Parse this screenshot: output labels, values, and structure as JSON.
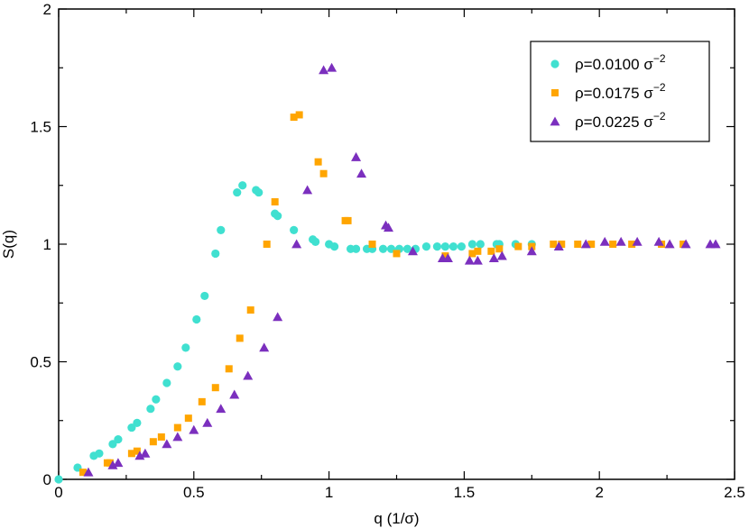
{
  "chart_data": {
    "type": "scatter",
    "title": "",
    "xlabel": "q  (1/σ)",
    "ylabel": "S(q)",
    "xlim": [
      0,
      2.5
    ],
    "ylim": [
      0,
      2
    ],
    "xticks": [
      0,
      0.5,
      1,
      1.5,
      2,
      2.5
    ],
    "xtick_labels": [
      "0",
      "0.5",
      "1",
      "1.5",
      "2",
      "2.5"
    ],
    "yticks": [
      0,
      0.5,
      1,
      1.5,
      2
    ],
    "ytick_labels": [
      "0",
      "0.5",
      "1",
      "1.5",
      "2"
    ],
    "legend_position": "top-right",
    "series": [
      {
        "name": "ρ=0.0100 σ",
        "exponent": "−2",
        "marker": "circle",
        "color": "#40e0d0",
        "points": [
          [
            0.0,
            0.0
          ],
          [
            0.07,
            0.05
          ],
          [
            0.13,
            0.1
          ],
          [
            0.15,
            0.11
          ],
          [
            0.2,
            0.15
          ],
          [
            0.22,
            0.17
          ],
          [
            0.27,
            0.22
          ],
          [
            0.29,
            0.24
          ],
          [
            0.34,
            0.3
          ],
          [
            0.36,
            0.34
          ],
          [
            0.4,
            0.41
          ],
          [
            0.44,
            0.48
          ],
          [
            0.47,
            0.56
          ],
          [
            0.51,
            0.68
          ],
          [
            0.54,
            0.78
          ],
          [
            0.58,
            0.96
          ],
          [
            0.6,
            1.06
          ],
          [
            0.66,
            1.22
          ],
          [
            0.68,
            1.25
          ],
          [
            0.73,
            1.23
          ],
          [
            0.74,
            1.22
          ],
          [
            0.8,
            1.13
          ],
          [
            0.81,
            1.12
          ],
          [
            0.87,
            1.06
          ],
          [
            0.94,
            1.02
          ],
          [
            0.95,
            1.01
          ],
          [
            1.0,
            1.0
          ],
          [
            1.02,
            0.99
          ],
          [
            1.08,
            0.98
          ],
          [
            1.1,
            0.98
          ],
          [
            1.14,
            0.98
          ],
          [
            1.16,
            0.98
          ],
          [
            1.2,
            0.98
          ],
          [
            1.23,
            0.98
          ],
          [
            1.26,
            0.98
          ],
          [
            1.29,
            0.98
          ],
          [
            1.32,
            0.98
          ],
          [
            1.36,
            0.99
          ],
          [
            1.4,
            0.99
          ],
          [
            1.43,
            0.99
          ],
          [
            1.46,
            0.99
          ],
          [
            1.49,
            0.99
          ],
          [
            1.53,
            1.0
          ],
          [
            1.56,
            1.0
          ],
          [
            1.62,
            1.0
          ],
          [
            1.63,
            1.0
          ],
          [
            1.69,
            1.0
          ],
          [
            1.75,
            1.0
          ]
        ]
      },
      {
        "name": "ρ=0.0175 σ",
        "exponent": "−2",
        "marker": "square",
        "color": "#ffa500",
        "points": [
          [
            0.09,
            0.03
          ],
          [
            0.18,
            0.07
          ],
          [
            0.19,
            0.07
          ],
          [
            0.27,
            0.11
          ],
          [
            0.29,
            0.12
          ],
          [
            0.35,
            0.16
          ],
          [
            0.38,
            0.18
          ],
          [
            0.44,
            0.22
          ],
          [
            0.48,
            0.26
          ],
          [
            0.53,
            0.33
          ],
          [
            0.58,
            0.39
          ],
          [
            0.63,
            0.47
          ],
          [
            0.67,
            0.6
          ],
          [
            0.71,
            0.72
          ],
          [
            0.77,
            1.0
          ],
          [
            0.8,
            1.18
          ],
          [
            0.87,
            1.54
          ],
          [
            0.89,
            1.55
          ],
          [
            0.96,
            1.35
          ],
          [
            0.98,
            1.3
          ],
          [
            1.06,
            1.1
          ],
          [
            1.07,
            1.1
          ],
          [
            1.16,
            1.0
          ],
          [
            1.25,
            0.96
          ],
          [
            1.43,
            0.95
          ],
          [
            1.53,
            0.96
          ],
          [
            1.55,
            0.97
          ],
          [
            1.6,
            0.97
          ],
          [
            1.63,
            0.98
          ],
          [
            1.7,
            0.99
          ],
          [
            1.75,
            0.99
          ],
          [
            1.83,
            1.0
          ],
          [
            1.86,
            1.0
          ],
          [
            1.92,
            1.0
          ],
          [
            1.97,
            1.0
          ],
          [
            2.05,
            1.0
          ],
          [
            2.12,
            1.0
          ],
          [
            2.23,
            1.0
          ],
          [
            2.31,
            1.0
          ]
        ]
      },
      {
        "name": "ρ=0.0225 σ",
        "exponent": "−2",
        "marker": "triangle",
        "color": "#7b2fbe",
        "points": [
          [
            0.11,
            0.03
          ],
          [
            0.2,
            0.06
          ],
          [
            0.22,
            0.07
          ],
          [
            0.3,
            0.1
          ],
          [
            0.32,
            0.11
          ],
          [
            0.4,
            0.15
          ],
          [
            0.44,
            0.18
          ],
          [
            0.5,
            0.21
          ],
          [
            0.55,
            0.24
          ],
          [
            0.6,
            0.3
          ],
          [
            0.65,
            0.36
          ],
          [
            0.7,
            0.44
          ],
          [
            0.76,
            0.56
          ],
          [
            0.81,
            0.69
          ],
          [
            0.88,
            1.0
          ],
          [
            0.92,
            1.23
          ],
          [
            0.98,
            1.74
          ],
          [
            1.01,
            1.75
          ],
          [
            1.1,
            1.37
          ],
          [
            1.12,
            1.3
          ],
          [
            1.21,
            1.08
          ],
          [
            1.22,
            1.07
          ],
          [
            1.31,
            0.97
          ],
          [
            1.42,
            0.94
          ],
          [
            1.44,
            0.94
          ],
          [
            1.52,
            0.93
          ],
          [
            1.55,
            0.93
          ],
          [
            1.61,
            0.94
          ],
          [
            1.64,
            0.95
          ],
          [
            1.75,
            0.97
          ],
          [
            1.85,
            0.99
          ],
          [
            1.95,
            1.0
          ],
          [
            2.02,
            1.01
          ],
          [
            2.08,
            1.01
          ],
          [
            2.14,
            1.01
          ],
          [
            2.22,
            1.01
          ],
          [
            2.26,
            1.0
          ],
          [
            2.32,
            1.0
          ],
          [
            2.41,
            1.0
          ],
          [
            2.43,
            1.0
          ]
        ]
      }
    ]
  }
}
